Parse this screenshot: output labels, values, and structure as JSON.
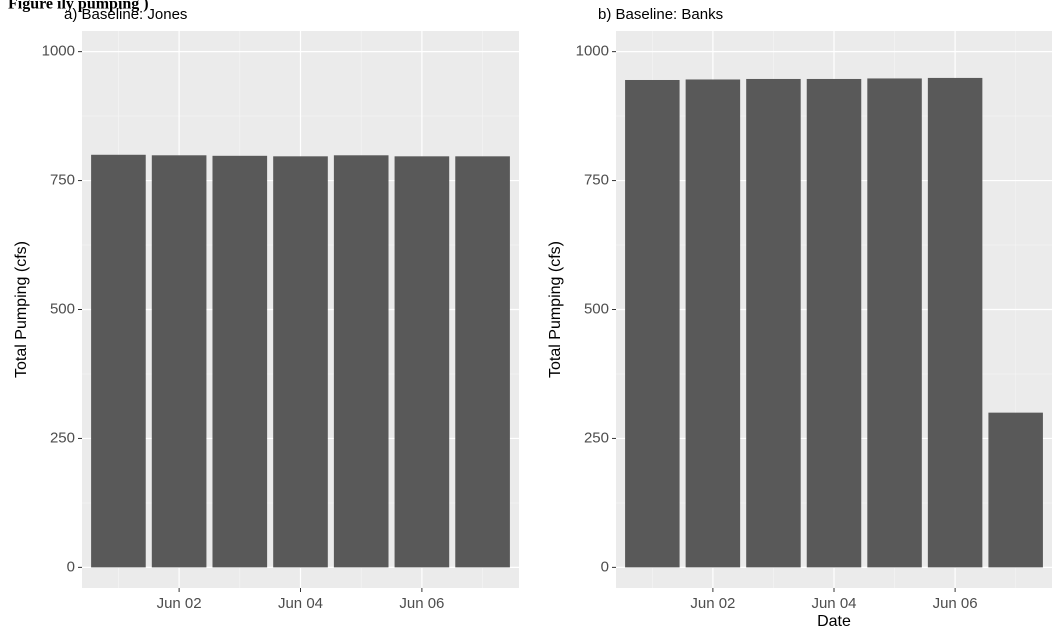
{
  "figure_header": "Figure    ily                    pumping                    )",
  "chart_data": [
    {
      "type": "bar",
      "title": "a) Baseline: Jones",
      "xlabel": "",
      "ylabel": "Total Pumping (cfs)",
      "x": [
        "2023-06-01",
        "2023-06-02",
        "2023-06-03",
        "2023-06-04",
        "2023-06-05",
        "2023-06-06",
        "2023-06-07"
      ],
      "values": [
        800,
        799,
        798,
        797,
        799,
        797,
        797
      ],
      "ylim": [
        0,
        1000
      ],
      "y_ticks": [
        0,
        250,
        500,
        750,
        1000
      ],
      "x_ticks": [
        "Jun 02",
        "Jun 04",
        "Jun 06"
      ],
      "x_tick_dates": [
        "2023-06-02",
        "2023-06-04",
        "2023-06-06"
      ],
      "grid": true
    },
    {
      "type": "bar",
      "title": "b) Baseline: Banks",
      "xlabel": "Date",
      "ylabel": "Total Pumping (cfs)",
      "x": [
        "2023-06-01",
        "2023-06-02",
        "2023-06-03",
        "2023-06-04",
        "2023-06-05",
        "2023-06-06",
        "2023-06-07"
      ],
      "values": [
        945,
        946,
        947,
        947,
        948,
        949,
        300
      ],
      "ylim": [
        0,
        1000
      ],
      "y_ticks": [
        0,
        250,
        500,
        750,
        1000
      ],
      "x_ticks": [
        "Jun 02",
        "Jun 04",
        "Jun 06"
      ],
      "x_tick_dates": [
        "2023-06-02",
        "2023-06-04",
        "2023-06-06"
      ],
      "grid": true
    }
  ],
  "colors": {
    "panel_background": "#ebebeb",
    "grid_major": "#ffffff",
    "grid_minor": "#f5f5f5",
    "bar_fill": "#595959",
    "tick_label": "#4d4d4d",
    "tick_mark": "#333333"
  }
}
